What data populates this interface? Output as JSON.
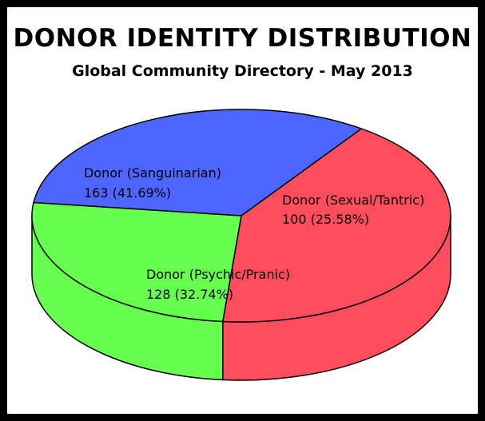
{
  "chart_data": {
    "type": "pie",
    "title": "DONOR IDENTITY DISTRIBUTION",
    "subtitle": "Global Community Directory - May 2013",
    "three_d": true,
    "slices": [
      {
        "label": "Donor (Sanguinarian)",
        "value": 163,
        "percent": "41.69%",
        "color": "#ff4d5e",
        "value_text": "163 (41.69%)"
      },
      {
        "label": "Donor (Sexual/Tantric)",
        "value": 100,
        "percent": "25.58%",
        "color": "#66ff4d",
        "value_text": "100 (25.58%)"
      },
      {
        "label": "Donor (Psychic/Pranic)",
        "value": 128,
        "percent": "32.74%",
        "color": "#4d66ff",
        "value_text": "128 (32.74%)"
      }
    ]
  }
}
